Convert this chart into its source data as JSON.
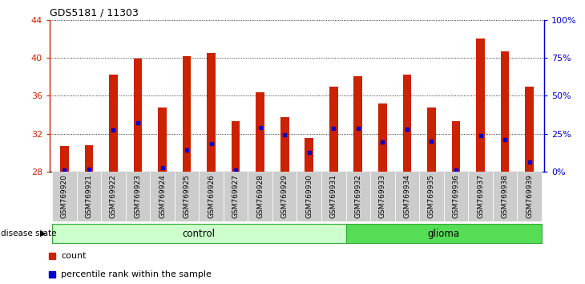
{
  "title": "GDS5181 / 11303",
  "samples": [
    "GSM769920",
    "GSM769921",
    "GSM769922",
    "GSM769923",
    "GSM769924",
    "GSM769925",
    "GSM769926",
    "GSM769927",
    "GSM769928",
    "GSM769929",
    "GSM769930",
    "GSM769931",
    "GSM769932",
    "GSM769933",
    "GSM769934",
    "GSM769935",
    "GSM769936",
    "GSM769937",
    "GSM769938",
    "GSM769939"
  ],
  "counts": [
    30.7,
    30.8,
    38.2,
    39.9,
    34.8,
    40.2,
    40.5,
    33.3,
    36.4,
    33.8,
    31.6,
    37.0,
    38.1,
    35.2,
    38.2,
    34.8,
    33.3,
    42.0,
    40.7,
    37.0
  ],
  "percentile_positions": [
    28.2,
    28.3,
    32.4,
    33.2,
    28.4,
    30.3,
    31.0,
    28.2,
    32.7,
    31.9,
    30.0,
    32.6,
    32.6,
    31.1,
    32.5,
    31.2,
    28.2,
    31.8,
    31.4,
    29.0
  ],
  "control_count": 12,
  "glioma_count": 8,
  "y_min": 28,
  "y_max": 44,
  "y_ticks": [
    28,
    32,
    36,
    40,
    44
  ],
  "right_y_ticks": [
    0,
    25,
    50,
    75,
    100
  ],
  "bar_color": "#cc2200",
  "marker_color": "#0000cc",
  "control_bg": "#ccffcc",
  "glioma_bg": "#55dd55",
  "plot_bg": "#ffffff",
  "label_bg": "#cccccc",
  "legend_count_label": "count",
  "legend_pct_label": "percentile rank within the sample",
  "disease_state_label": "disease state",
  "control_label": "control",
  "glioma_label": "glioma",
  "bar_width": 0.35
}
